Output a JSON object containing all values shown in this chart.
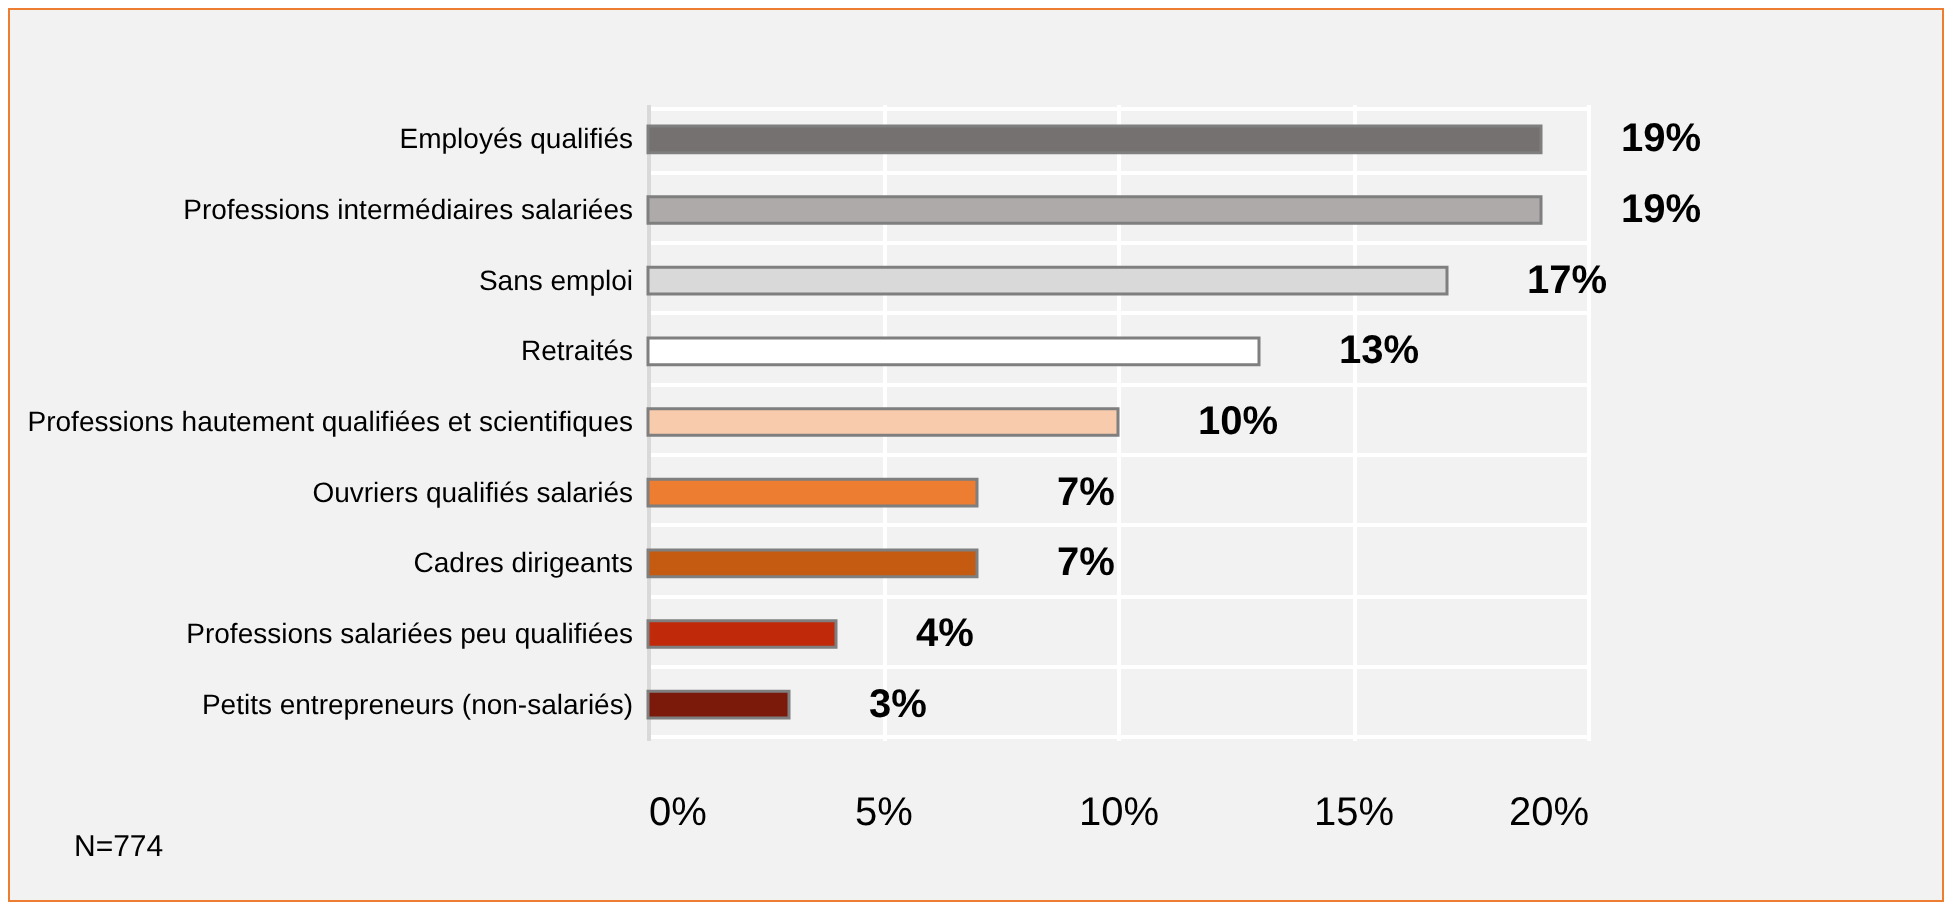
{
  "chart_data": {
    "type": "bar",
    "orientation": "horizontal",
    "categories": [
      "Employés qualifiés",
      "Professions intermédiaires salariées",
      "Sans emploi",
      "Retraités",
      "Professions hautement qualifiées et scientifiques",
      "Ouvriers qualifiés salariés",
      "Cadres dirigeants",
      "Professions salariées peu qualifiées",
      "Petits entrepreneurs (non-salariés)"
    ],
    "values": [
      19,
      19,
      17,
      13,
      10,
      7,
      7,
      4,
      3
    ],
    "colors": [
      "#767171",
      "#aeaaaa",
      "#d9d9d9",
      "#ffffff",
      "#f8cbad",
      "#ed7d31",
      "#c55a11",
      "#c0290a",
      "#7b1a0b"
    ],
    "value_labels": [
      "19%",
      "19%",
      "17%",
      "13%",
      "10%",
      "7%",
      "7%",
      "4%",
      "3%"
    ],
    "xlim": [
      0,
      20
    ],
    "xticks": [
      {
        "value": 0,
        "label": "0%"
      },
      {
        "value": 5,
        "label": "5%"
      },
      {
        "value": 10,
        "label": "10%"
      },
      {
        "value": 15,
        "label": "15%"
      },
      {
        "value": 20,
        "label": "20%"
      }
    ],
    "grid": true,
    "annotations": [
      "N=774"
    ]
  }
}
